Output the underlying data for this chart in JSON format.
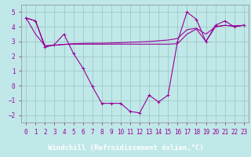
{
  "background_color": "#c0e8e8",
  "plot_bg_color": "#c0e8e8",
  "footer_color": "#800080",
  "line_color": "#990099",
  "grid_color": "#a0c8c8",
  "x": [
    0,
    1,
    2,
    3,
    4,
    5,
    6,
    7,
    8,
    9,
    10,
    11,
    12,
    13,
    14,
    15,
    16,
    17,
    18,
    19,
    20,
    21,
    22,
    23
  ],
  "y_main": [
    4.6,
    4.4,
    2.6,
    2.8,
    3.5,
    2.2,
    1.2,
    -0.05,
    -1.2,
    -1.2,
    -1.2,
    -1.75,
    -1.85,
    -0.65,
    -1.1,
    -0.65,
    3.0,
    5.0,
    4.5,
    3.0,
    4.1,
    4.4,
    4.0,
    4.1
  ],
  "y_line2": [
    4.6,
    3.5,
    2.7,
    2.75,
    2.8,
    2.85,
    2.87,
    2.88,
    2.88,
    2.9,
    2.92,
    2.95,
    2.97,
    3.0,
    3.05,
    3.1,
    3.2,
    3.8,
    3.9,
    3.5,
    4.0,
    4.1,
    4.05,
    4.1
  ],
  "y_line3": [
    4.6,
    4.4,
    2.7,
    2.75,
    2.8,
    2.82,
    2.82,
    2.82,
    2.82,
    2.82,
    2.82,
    2.82,
    2.82,
    2.82,
    2.82,
    2.82,
    2.85,
    3.5,
    3.85,
    3.0,
    4.0,
    4.1,
    4.05,
    4.1
  ],
  "ylim": [
    -2.5,
    5.5
  ],
  "yticks": [
    -2,
    -1,
    0,
    1,
    2,
    3,
    4,
    5
  ],
  "xticks": [
    0,
    1,
    2,
    3,
    4,
    5,
    6,
    7,
    8,
    9,
    10,
    11,
    12,
    13,
    14,
    15,
    16,
    17,
    18,
    19,
    20,
    21,
    22,
    23
  ],
  "xlabel": "Windchill (Refroidissement éolien,°C)",
  "tick_fontsize": 5.5,
  "xlabel_fontsize": 6.5
}
